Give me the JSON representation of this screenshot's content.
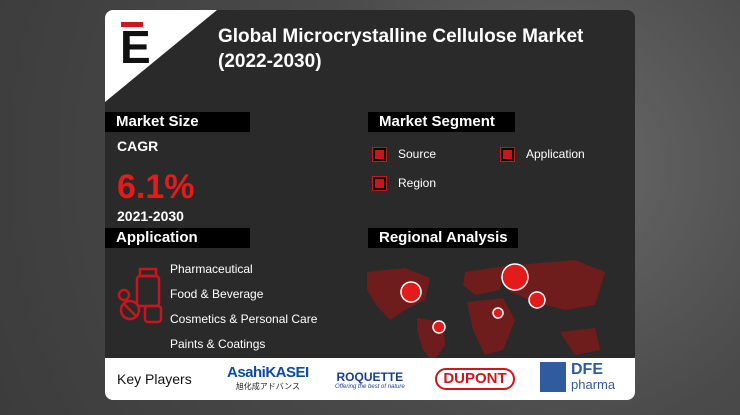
{
  "header": {
    "logo_letter": "E",
    "title_lines": [
      "Global Microcrystalline Cellulose Market",
      "(2022-2030)"
    ]
  },
  "market_size": {
    "heading": "Market Size",
    "metric": "CAGR",
    "value": "6.1%",
    "period": "2021-2030"
  },
  "market_segment": {
    "heading": "Market Segment",
    "items": [
      "Source",
      "Application",
      "Region"
    ]
  },
  "application": {
    "heading": "Application",
    "items": [
      "Pharmaceutical",
      "Food & Beverage",
      "Cosmetics & Personal Care",
      "Paints & Coatings"
    ]
  },
  "regional_analysis": {
    "heading": "Regional Analysis"
  },
  "key_players": {
    "heading": "Key Players",
    "logos": [
      {
        "name": "AsahiKASEI",
        "sub": "旭化成アドバンス"
      },
      {
        "name": "ROQUETTE",
        "sub": "Offering the best of nature"
      },
      {
        "name": "DUPONT"
      },
      {
        "name": "DFE",
        "sub": "pharma"
      }
    ]
  }
}
